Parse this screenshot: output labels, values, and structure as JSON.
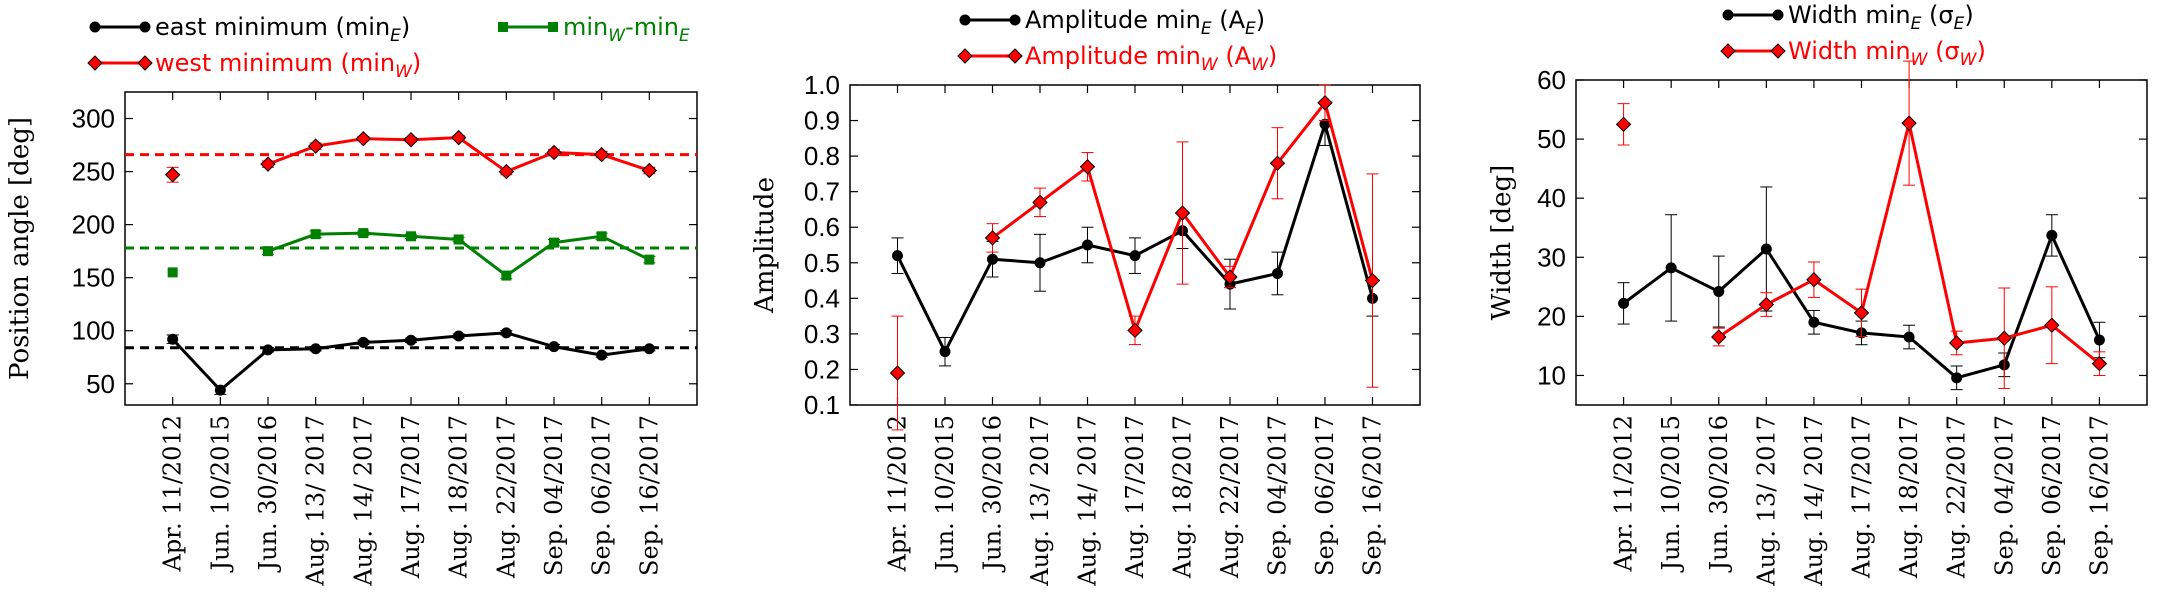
{
  "chart_data": [
    {
      "type": "line",
      "ylabel": "Position angle [deg]",
      "ylim": [
        30,
        325
      ],
      "yticks": [
        50,
        100,
        150,
        200,
        250,
        300
      ],
      "categories": [
        "Apr. 11/2012",
        "Jun. 10/2015",
        "Jun. 30/2016",
        "Aug. 13/ 2017",
        "Aug. 14/ 2017",
        "Aug. 17/2017",
        "Aug. 18/2017",
        "Aug. 22/2017",
        "Sep. 04/2017",
        "Sep. 06/2017",
        "Sep. 16/2017"
      ],
      "series": [
        {
          "name": "east minimum (min_E)",
          "color": "#000000",
          "marker": "circle",
          "values": [
            92,
            44,
            82,
            83,
            89,
            91,
            95,
            98,
            85,
            77,
            83
          ],
          "errors": [
            4,
            4,
            2,
            2,
            2,
            2,
            2,
            2,
            2,
            2,
            2
          ],
          "connect_from": 0,
          "legend": {
            "text": "east minimum (min",
            "sub": "E",
            "tail": ")"
          }
        },
        {
          "name": "west minimum (min_W)",
          "color": "#ff0000",
          "marker": "diamond",
          "values": [
            247,
            null,
            257,
            274,
            281,
            280,
            282,
            250,
            268,
            266,
            251
          ],
          "errors": [
            7,
            null,
            3,
            3,
            2,
            2,
            2,
            3,
            3,
            3,
            3
          ],
          "connect_from": 2,
          "legend": {
            "text": "west minimum (min",
            "sub": "W",
            "tail": ")"
          }
        },
        {
          "name": "min_W-min_E",
          "color": "#008000",
          "marker": "square",
          "values": [
            155,
            null,
            175,
            191,
            192,
            189,
            186,
            152,
            183,
            189,
            167
          ],
          "errors": [
            0,
            null,
            3,
            3,
            2,
            2,
            2,
            3,
            3,
            3,
            3
          ],
          "connect_from": 2,
          "legend": {
            "text": "min",
            "sub": "W",
            "tail": "-min",
            "sub2": "E"
          }
        }
      ],
      "reference_lines": [
        {
          "value": 266,
          "color": "#ff0000"
        },
        {
          "value": 178,
          "color": "#008000"
        },
        {
          "value": 84,
          "color": "#000000"
        }
      ]
    },
    {
      "type": "line",
      "ylabel": "Amplitude",
      "ylim": [
        0.1,
        1.0
      ],
      "yticks": [
        "0.1",
        "0.2",
        "0.3",
        "0.4",
        "0.5",
        "0.6",
        "0.7",
        "0.8",
        "0.9",
        "1.0"
      ],
      "categories": [
        "Apr. 11/2012",
        "Jun. 10/2015",
        "Jun. 30/2016",
        "Aug. 13/ 2017",
        "Aug. 14/ 2017",
        "Aug. 17/2017",
        "Aug. 18/2017",
        "Aug. 22/2017",
        "Sep. 04/2017",
        "Sep. 06/2017",
        "Sep. 16/2017"
      ],
      "series": [
        {
          "name": "Amplitude min_E (A_E)",
          "color": "#000000",
          "marker": "circle",
          "values": [
            0.52,
            0.25,
            0.51,
            0.5,
            0.55,
            0.52,
            0.59,
            0.44,
            0.47,
            0.89,
            0.4
          ],
          "errors": [
            0.05,
            0.04,
            0.05,
            0.08,
            0.05,
            0.05,
            0.05,
            0.07,
            0.06,
            0.06,
            0.05
          ],
          "connect_from": 0,
          "legend": {
            "text": "Amplitude min",
            "sub": "E",
            "tail": " (A",
            "sub2": "E",
            "tail2": ")"
          }
        },
        {
          "name": "Amplitude min_W (A_W)",
          "color": "#ff0000",
          "marker": "diamond",
          "values": [
            0.19,
            null,
            0.57,
            0.67,
            0.77,
            0.31,
            0.64,
            0.46,
            0.78,
            0.95,
            0.45
          ],
          "errors": [
            0.16,
            null,
            0.04,
            0.04,
            0.04,
            0.04,
            0.2,
            0.03,
            0.1,
            0.05,
            0.3
          ],
          "connect_from": 2,
          "legend": {
            "text": "Amplitude min",
            "sub": "W",
            "tail": " (A",
            "sub2": "W",
            "tail2": ")"
          }
        }
      ],
      "reference_lines": []
    },
    {
      "type": "line",
      "ylabel": "Width [deg]",
      "ylim": [
        5,
        60
      ],
      "yticks": [
        10,
        20,
        30,
        40,
        50,
        60
      ],
      "categories": [
        "Apr. 11/2012",
        "Jun. 10/2015",
        "Jun. 30/2016",
        "Aug. 13/ 2017",
        "Aug. 14/ 2017",
        "Aug. 17/2017",
        "Aug. 18/2017",
        "Aug. 22/2017",
        "Sep. 04/2017",
        "Sep. 06/2017",
        "Sep. 16/2017"
      ],
      "series": [
        {
          "name": "Width min_E (σ_E)",
          "color": "#000000",
          "marker": "circle",
          "values": [
            22.2,
            28.2,
            24.2,
            31.4,
            19,
            17.2,
            16.5,
            9.6,
            11.8,
            33.7,
            16
          ],
          "errors": [
            3.5,
            9,
            6,
            10.5,
            2,
            2,
            2,
            2,
            2,
            3.5,
            3
          ],
          "connect_from": 0,
          "legend": {
            "text": "Width min",
            "sub": "E",
            "tail": " (σ",
            "sub2": "E",
            "tail2": ")"
          }
        },
        {
          "name": "Width min_W (σ_W)",
          "color": "#ff0000",
          "marker": "diamond",
          "values": [
            52.5,
            null,
            16.5,
            22,
            26.2,
            20.6,
            52.7,
            15.5,
            16.3,
            18.5,
            12
          ],
          "errors": [
            3.5,
            null,
            1.5,
            2,
            3,
            4,
            10.5,
            2,
            8.5,
            6.5,
            2
          ],
          "connect_from": 2,
          "legend": {
            "text": "Width min",
            "sub": "W",
            "tail": " (σ",
            "sub2": "W",
            "tail2": ")"
          }
        }
      ],
      "reference_lines": []
    }
  ]
}
